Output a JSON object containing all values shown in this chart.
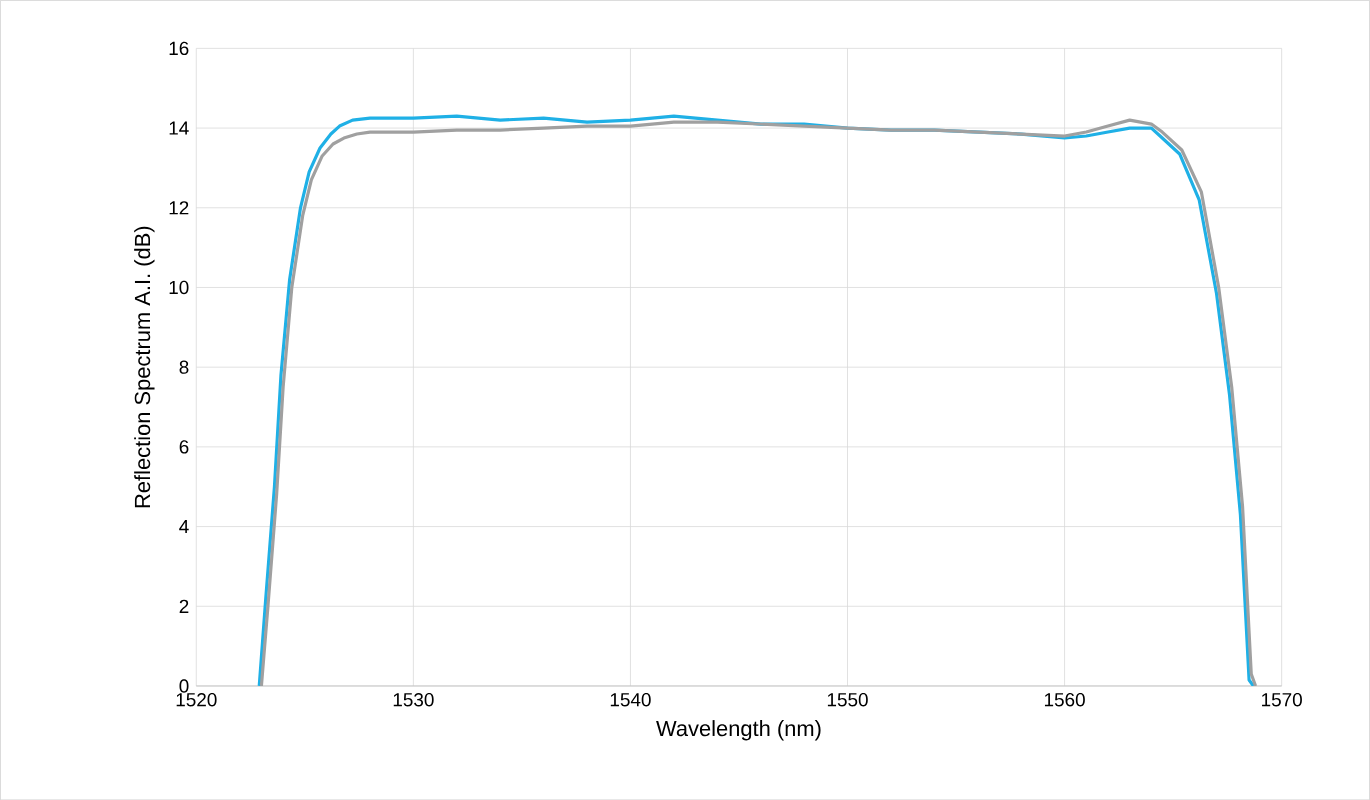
{
  "chart_data": {
    "type": "line",
    "xlabel": "Wavelength (nm)",
    "ylabel": "Reflection Spectrum A.I. (dB)",
    "xlim": [
      1520,
      1570
    ],
    "ylim": [
      0,
      16
    ],
    "xticks": [
      1520,
      1530,
      1540,
      1550,
      1560,
      1570
    ],
    "yticks": [
      0,
      2,
      4,
      6,
      8,
      10,
      12,
      14,
      16
    ],
    "grid": true,
    "series": [
      {
        "color": "#1fb0e6",
        "x": [
          1522.9,
          1523.2,
          1523.6,
          1523.9,
          1524.3,
          1524.8,
          1525.2,
          1525.7,
          1526.2,
          1526.6,
          1527.2,
          1528,
          1530,
          1532,
          1534,
          1536,
          1538,
          1540,
          1542,
          1544,
          1546,
          1548,
          1550,
          1552,
          1554,
          1556,
          1558,
          1560,
          1561,
          1562,
          1563,
          1564,
          1564.4,
          1565.3,
          1566.2,
          1567,
          1567.6,
          1568.1,
          1568.5,
          1568.7
        ],
        "values": [
          0,
          2.2,
          5.0,
          7.8,
          10.2,
          12.0,
          12.9,
          13.5,
          13.85,
          14.05,
          14.2,
          14.25,
          14.25,
          14.3,
          14.2,
          14.25,
          14.15,
          14.2,
          14.3,
          14.2,
          14.1,
          14.1,
          14.0,
          13.95,
          13.95,
          13.9,
          13.85,
          13.75,
          13.8,
          13.9,
          14.0,
          14.0,
          13.8,
          13.35,
          12.2,
          9.85,
          7.3,
          4.3,
          0.15,
          0
        ]
      },
      {
        "color": "#a0a0a0",
        "x": [
          1523.0,
          1523.3,
          1523.7,
          1524.0,
          1524.4,
          1524.9,
          1525.3,
          1525.8,
          1526.3,
          1526.8,
          1527.4,
          1528,
          1530,
          1532,
          1534,
          1536,
          1538,
          1540,
          1542,
          1544,
          1546,
          1548,
          1550,
          1552,
          1554,
          1556,
          1558,
          1560,
          1561,
          1562,
          1563,
          1564,
          1564.5,
          1565.4,
          1566.3,
          1567.1,
          1567.7,
          1568.2,
          1568.6,
          1568.8
        ],
        "values": [
          0,
          2.0,
          4.8,
          7.5,
          10.0,
          11.8,
          12.7,
          13.3,
          13.6,
          13.75,
          13.85,
          13.9,
          13.9,
          13.95,
          13.95,
          14.0,
          14.05,
          14.05,
          14.15,
          14.15,
          14.1,
          14.05,
          14.0,
          13.95,
          13.95,
          13.9,
          13.85,
          13.8,
          13.9,
          14.05,
          14.2,
          14.1,
          13.9,
          13.45,
          12.4,
          10.0,
          7.5,
          4.5,
          0.3,
          0
        ]
      }
    ]
  }
}
